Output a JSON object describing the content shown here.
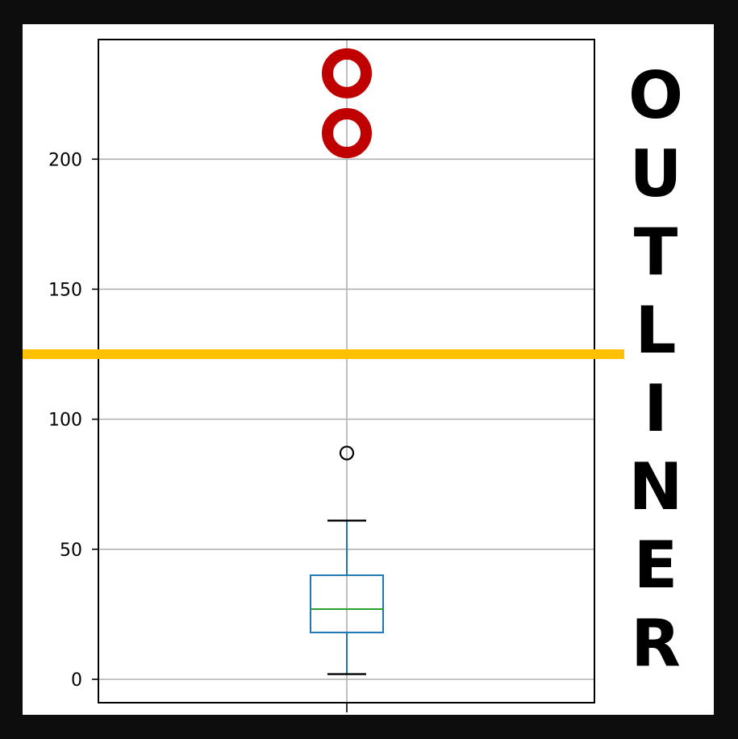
{
  "chart_data": {
    "type": "box",
    "yticks": [
      0,
      50,
      100,
      150,
      200
    ],
    "ylim": [
      -9,
      246
    ],
    "grid": true,
    "box": {
      "min": 2,
      "q1": 18,
      "median": 27,
      "q3": 40,
      "max": 61,
      "outliers": [
        87,
        210,
        233
      ]
    },
    "highlighted_outliers": [
      210,
      233
    ],
    "threshold_line": 125,
    "colors": {
      "box": "#1f77b4",
      "median": "#2ca02c",
      "highlight": "#c00000",
      "threshold": "#ffc000",
      "grid": "#b0b0b0"
    }
  },
  "side_title": {
    "letters": [
      "O",
      "U",
      "T",
      "L",
      "I",
      "N",
      "E",
      "R"
    ]
  }
}
